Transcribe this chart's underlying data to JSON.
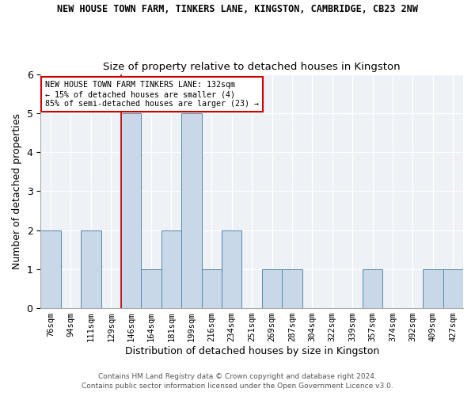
{
  "title": "NEW HOUSE TOWN FARM, TINKERS LANE, KINGSTON, CAMBRIDGE, CB23 2NW",
  "subtitle": "Size of property relative to detached houses in Kingston",
  "xlabel": "Distribution of detached houses by size in Kingston",
  "ylabel": "Number of detached properties",
  "footnote1": "Contains HM Land Registry data © Crown copyright and database right 2024.",
  "footnote2": "Contains public sector information licensed under the Open Government Licence v3.0.",
  "annotation_line1": "NEW HOUSE TOWN FARM TINKERS LANE: 132sqm",
  "annotation_line2": "← 15% of detached houses are smaller (4)",
  "annotation_line3": "85% of semi-detached houses are larger (23) →",
  "bin_labels": [
    "76sqm",
    "94sqm",
    "111sqm",
    "129sqm",
    "146sqm",
    "164sqm",
    "181sqm",
    "199sqm",
    "216sqm",
    "234sqm",
    "251sqm",
    "269sqm",
    "287sqm",
    "304sqm",
    "322sqm",
    "339sqm",
    "357sqm",
    "374sqm",
    "392sqm",
    "409sqm",
    "427sqm"
  ],
  "counts": [
    2,
    0,
    2,
    0,
    5,
    1,
    2,
    5,
    1,
    2,
    0,
    1,
    1,
    0,
    0,
    0,
    1,
    0,
    0,
    1,
    1
  ],
  "bar_color": "#c8d8e8",
  "bar_edge_color": "#5588aa",
  "marker_index": 3,
  "marker_color": "#cc0000",
  "ylim": [
    0,
    6
  ],
  "yticks": [
    0,
    1,
    2,
    3,
    4,
    5,
    6
  ],
  "annotation_box_color": "#cc0000",
  "background_color": "#eef2f7",
  "title_fontsize": 8.5,
  "subtitle_fontsize": 9.5,
  "ylabel_fontsize": 9,
  "xlabel_fontsize": 9,
  "tick_fontsize": 7.5,
  "footnote_fontsize": 6.5
}
